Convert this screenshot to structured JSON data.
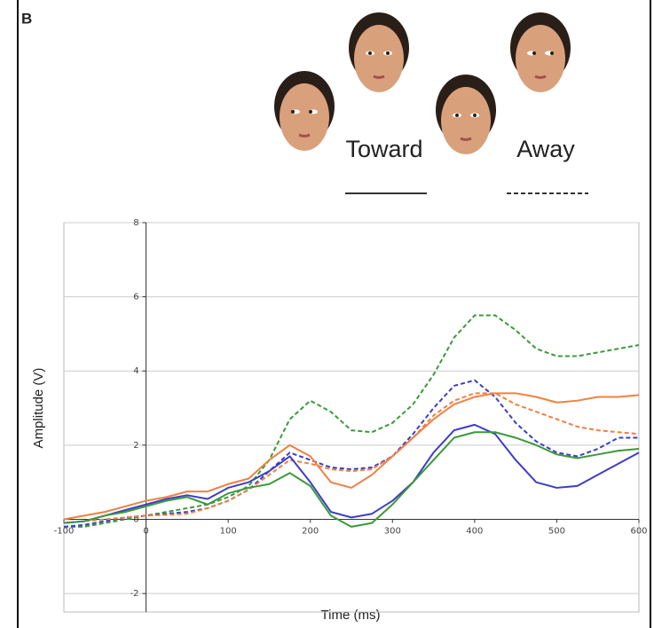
{
  "panel_label": "B",
  "chart_data": {
    "type": "line",
    "x_label": "Time (ms)",
    "y_label": "Amplitude (V)",
    "style_legend": [
      {
        "label": "Toward",
        "line_style": "solid"
      },
      {
        "label": "Away",
        "line_style": "dashed"
      }
    ],
    "x": [
      -100,
      -75,
      -50,
      -25,
      0,
      25,
      50,
      75,
      100,
      125,
      150,
      175,
      200,
      225,
      250,
      275,
      300,
      325,
      350,
      375,
      400,
      425,
      450,
      475,
      500,
      525,
      550,
      575,
      600
    ],
    "series": [
      {
        "color": "#3a9a3a",
        "line_style": "dashed",
        "values": [
          -0.2,
          -0.2,
          -0.1,
          0,
          0.1,
          0.2,
          0.3,
          0.4,
          0.6,
          0.9,
          1.6,
          2.7,
          3.2,
          2.9,
          2.4,
          2.35,
          2.6,
          3.1,
          3.9,
          4.9,
          5.5,
          5.5,
          5.1,
          4.6,
          4.4,
          4.4,
          4.5,
          4.6,
          4.7
        ]
      },
      {
        "color": "#3d3dc8",
        "line_style": "dashed",
        "values": [
          -0.2,
          -0.15,
          -0.05,
          0.05,
          0.1,
          0.15,
          0.2,
          0.3,
          0.5,
          0.8,
          1.3,
          1.8,
          1.6,
          1.4,
          1.35,
          1.4,
          1.7,
          2.3,
          3.0,
          3.6,
          3.75,
          3.3,
          2.6,
          2.1,
          1.8,
          1.7,
          1.9,
          2.2,
          2.2
        ]
      },
      {
        "color": "#f08040",
        "line_style": "dashed",
        "values": [
          -0.1,
          -0.05,
          0,
          0.05,
          0.1,
          0.12,
          0.15,
          0.3,
          0.5,
          0.8,
          1.2,
          1.6,
          1.5,
          1.35,
          1.3,
          1.35,
          1.7,
          2.2,
          2.8,
          3.2,
          3.4,
          3.4,
          3.1,
          2.9,
          2.7,
          2.5,
          2.4,
          2.35,
          2.3
        ]
      },
      {
        "color": "#f08040",
        "line_style": "solid",
        "values": [
          0,
          0.1,
          0.2,
          0.35,
          0.5,
          0.6,
          0.75,
          0.75,
          0.95,
          1.1,
          1.6,
          2.0,
          1.7,
          1.0,
          0.85,
          1.2,
          1.7,
          2.2,
          2.7,
          3.1,
          3.3,
          3.4,
          3.4,
          3.3,
          3.15,
          3.2,
          3.3,
          3.3,
          3.35
        ]
      },
      {
        "color": "#3d3dc8",
        "line_style": "solid",
        "values": [
          -0.1,
          -0.05,
          0.1,
          0.25,
          0.4,
          0.55,
          0.65,
          0.55,
          0.85,
          1.0,
          1.3,
          1.7,
          1.0,
          0.2,
          0.05,
          0.15,
          0.5,
          1.0,
          1.8,
          2.4,
          2.55,
          2.3,
          1.6,
          1.0,
          0.85,
          0.9,
          1.2,
          1.5,
          1.8
        ]
      },
      {
        "color": "#3a9a3a",
        "line_style": "solid",
        "values": [
          -0.1,
          -0.05,
          0.1,
          0.2,
          0.35,
          0.5,
          0.6,
          0.4,
          0.7,
          0.85,
          0.95,
          1.25,
          0.9,
          0.1,
          -0.2,
          -0.1,
          0.4,
          1.0,
          1.6,
          2.2,
          2.35,
          2.35,
          2.2,
          2.0,
          1.75,
          1.65,
          1.75,
          1.85,
          1.9
        ]
      }
    ],
    "xlim": [
      -100,
      600
    ],
    "xticks": [
      -100,
      0,
      100,
      200,
      300,
      400,
      500,
      600
    ],
    "ylim": [
      -2.5,
      8
    ],
    "yticks": [
      -2,
      0,
      2,
      4,
      6,
      8
    ],
    "grid": true
  }
}
